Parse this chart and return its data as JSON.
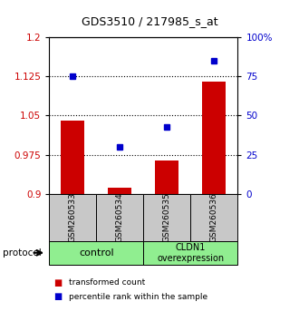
{
  "title": "GDS3510 / 217985_s_at",
  "samples": [
    "GSM260533",
    "GSM260534",
    "GSM260535",
    "GSM260536"
  ],
  "red_values": [
    1.04,
    0.912,
    0.965,
    1.115
  ],
  "blue_values": [
    75,
    30,
    43,
    85
  ],
  "ylim_left": [
    0.9,
    1.2
  ],
  "ylim_right": [
    0,
    100
  ],
  "yticks_left": [
    0.9,
    0.975,
    1.05,
    1.125,
    1.2
  ],
  "ytick_labels_left": [
    "0.9",
    "0.975",
    "1.05",
    "1.125",
    "1.2"
  ],
  "yticks_right": [
    0,
    25,
    50,
    75,
    100
  ],
  "ytick_labels_right": [
    "0",
    "25",
    "50",
    "75",
    "100%"
  ],
  "hlines": [
    0.975,
    1.05,
    1.125
  ],
  "group1_label": "control",
  "group2_label": "CLDN1\noverexpression",
  "group_color": "#90EE90",
  "bar_color": "#CC0000",
  "dot_color": "#0000CC",
  "bar_baseline": 0.9,
  "bar_width": 0.5,
  "legend_bar_label": "transformed count",
  "legend_dot_label": "percentile rank within the sample",
  "protocol_label": "protocol",
  "tick_label_color_left": "#CC0000",
  "tick_label_color_right": "#0000CC",
  "xlabel_bg_color": "#C8C8C8",
  "title_fontsize": 9
}
